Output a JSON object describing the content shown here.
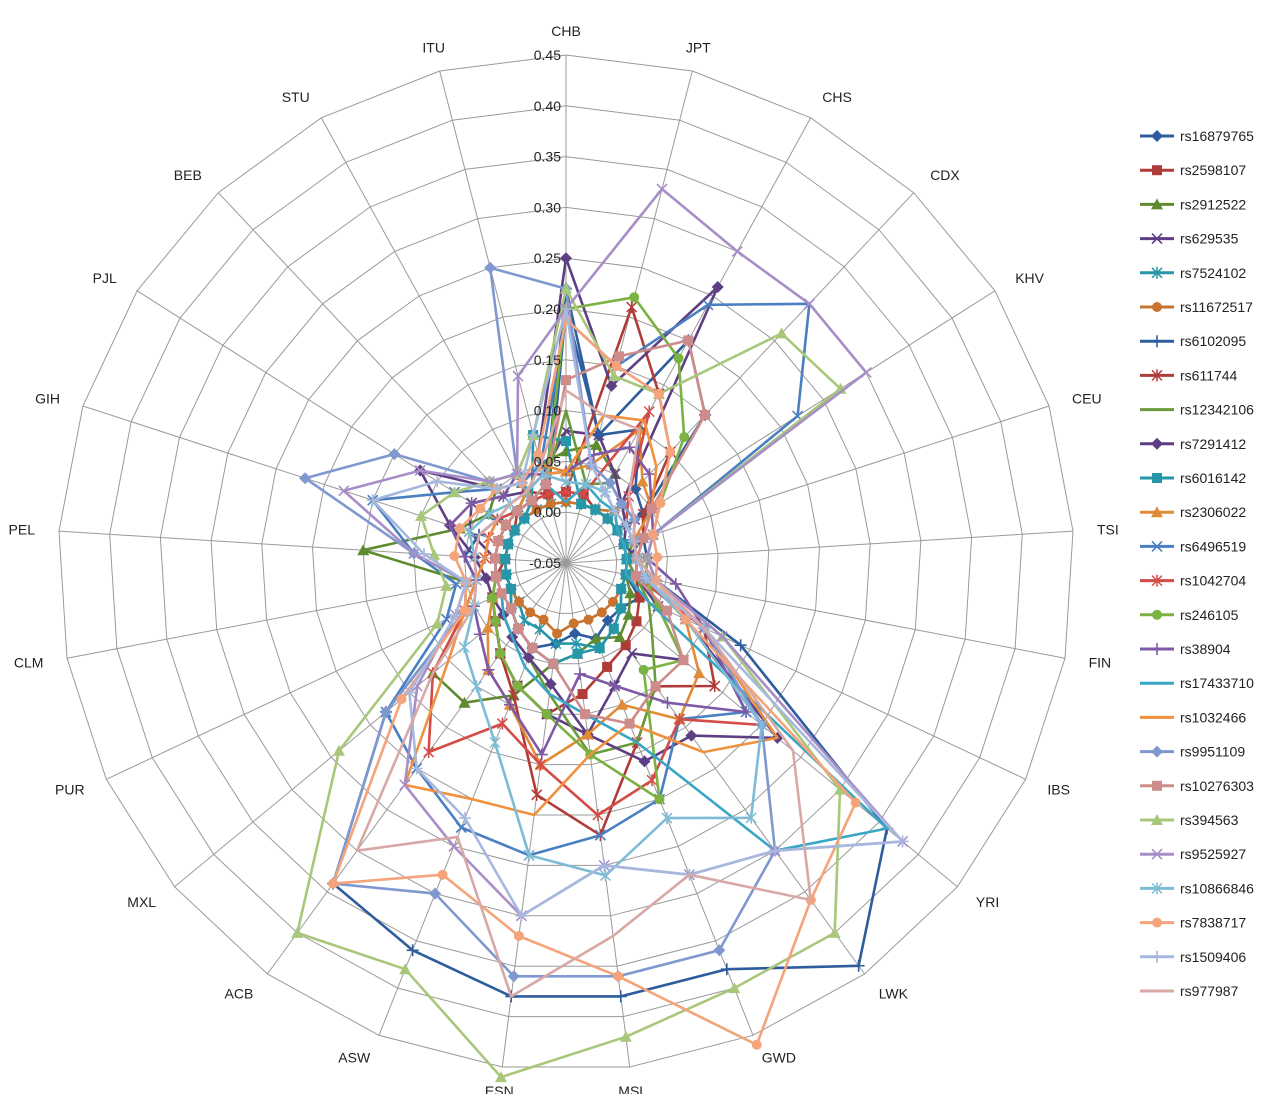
{
  "chart_data": {
    "type": "radar",
    "title": "",
    "rmin": -0.05,
    "rmax": 0.45,
    "tick_step": 0.05,
    "ticks": [
      "-0.05",
      "0.00",
      "0.05",
      "0.10",
      "0.15",
      "0.20",
      "0.25",
      "0.30",
      "0.35",
      "0.40",
      "0.45"
    ],
    "grid": true,
    "legend_position": "right",
    "categories": [
      "CHB",
      "JPT",
      "CHS",
      "CDX",
      "KHV",
      "CEU",
      "TSI",
      "FIN",
      "IBS",
      "YRI",
      "LWK",
      "GWD",
      "MSL",
      "ESN",
      "ASW",
      "ACB",
      "MXL",
      "PUR",
      "CLM",
      "PEL",
      "GIH",
      "PJL",
      "BEB",
      "STU",
      "ITU"
    ],
    "series": [
      {
        "name": "rs16879765",
        "color": "#2E5D9E",
        "marker": "diamond",
        "values": [
          0.2,
          0.08,
          0.1,
          0.05,
          0.04,
          0.03,
          0.01,
          0.01,
          0.03,
          0.02,
          0.02,
          0.03,
          0.02,
          0.03,
          0.04,
          0.03,
          0.02,
          0.01,
          0.01,
          0.01,
          0.01,
          0.01,
          0.01,
          0.02,
          0.02
        ]
      },
      {
        "name": "rs2598107",
        "color": "#B03C38",
        "marker": "square",
        "values": [
          0.02,
          0.02,
          0.01,
          0.01,
          0.01,
          0.01,
          0.01,
          0.02,
          0.03,
          0.04,
          0.05,
          0.06,
          0.08,
          0.1,
          0.08,
          0.06,
          0.04,
          0.03,
          0.02,
          0.01,
          0.01,
          0.01,
          0.02,
          0.03,
          0.02
        ]
      },
      {
        "name": "rs2912522",
        "color": "#5E8B2F",
        "marker": "triangle",
        "values": [
          0.06,
          0.07,
          0.05,
          0.03,
          0.02,
          0.01,
          0.01,
          0.01,
          0.02,
          0.03,
          0.04,
          0.03,
          0.04,
          0.05,
          0.09,
          0.12,
          0.12,
          0.06,
          0.05,
          0.15,
          0.06,
          0.04,
          0.05,
          0.04,
          0.05
        ]
      },
      {
        "name": "rs629535",
        "color": "#5E3F84",
        "marker": "x",
        "values": [
          0.08,
          0.08,
          0.05,
          0.03,
          0.03,
          0.02,
          0.02,
          0.02,
          0.05,
          0.1,
          0.06,
          0.08,
          0.12,
          0.1,
          0.08,
          0.06,
          0.04,
          0.03,
          0.02,
          0.02,
          0.05,
          0.06,
          0.04,
          0.03,
          0.04
        ]
      },
      {
        "name": "rs7524102",
        "color": "#2696A9",
        "marker": "asterisk",
        "values": [
          0.01,
          0.01,
          0.01,
          0.01,
          0.01,
          0.01,
          0.01,
          0.01,
          0.01,
          0.02,
          0.03,
          0.04,
          0.03,
          0.03,
          0.02,
          0.02,
          0.01,
          0.01,
          0.01,
          0.01,
          0.01,
          0.01,
          0.01,
          0.01,
          0.01
        ]
      },
      {
        "name": "rs11672517",
        "color": "#C8742E",
        "marker": "circle",
        "values": [
          0.01,
          0.01,
          0.01,
          0.02,
          0.01,
          0.01,
          0.01,
          0.01,
          0.01,
          0.01,
          0.01,
          0.01,
          0.01,
          0.02,
          0.01,
          0.01,
          0.01,
          0.01,
          0.01,
          0.01,
          0.01,
          0.01,
          0.01,
          0.01,
          0.01
        ]
      },
      {
        "name": "rs6102095",
        "color": "#2E5D9E",
        "marker": "plus",
        "values": [
          0.22,
          0.08,
          0.2,
          0.15,
          0.04,
          0.03,
          0.03,
          0.04,
          0.14,
          0.36,
          0.44,
          0.38,
          0.38,
          0.38,
          0.36,
          0.34,
          0.18,
          0.06,
          0.04,
          0.05,
          0.04,
          0.03,
          0.02,
          0.02,
          0.03
        ]
      },
      {
        "name": "rs611744",
        "color": "#B03C38",
        "marker": "asterisk",
        "values": [
          0.02,
          0.21,
          0.14,
          0.1,
          0.04,
          0.03,
          0.02,
          0.03,
          0.1,
          0.14,
          0.1,
          0.14,
          0.22,
          0.18,
          0.09,
          0.06,
          0.04,
          0.03,
          0.02,
          0.02,
          0.02,
          0.02,
          0.02,
          0.02,
          0.02
        ]
      },
      {
        "name": "rs12342106",
        "color": "#6A9A3C",
        "marker": "none",
        "values": [
          0.1,
          0.03,
          0.04,
          0.03,
          0.02,
          0.02,
          0.01,
          0.02,
          0.04,
          0.06,
          0.1,
          0.14,
          0.14,
          0.08,
          0.05,
          0.04,
          0.03,
          0.02,
          0.02,
          0.02,
          0.02,
          0.02,
          0.02,
          0.02,
          0.03
        ]
      },
      {
        "name": "rs7291412",
        "color": "#5E3F84",
        "marker": "diamond",
        "values": [
          0.25,
          0.13,
          0.26,
          0.03,
          0.02,
          0.01,
          0.02,
          0.03,
          0.08,
          0.22,
          0.16,
          0.16,
          0.12,
          0.07,
          0.05,
          0.04,
          0.03,
          0.03,
          0.03,
          0.04,
          0.07,
          0.12,
          0.05,
          0.04,
          0.06
        ]
      },
      {
        "name": "rs6016142",
        "color": "#2696A9",
        "marker": "square",
        "values": [
          0.07,
          0.01,
          0.01,
          0.01,
          0.01,
          0.01,
          0.01,
          0.01,
          0.01,
          0.02,
          0.03,
          0.04,
          0.04,
          0.05,
          0.04,
          0.03,
          0.02,
          0.01,
          0.01,
          0.01,
          0.01,
          0.01,
          0.01,
          0.02,
          0.08
        ]
      },
      {
        "name": "rs2306022",
        "color": "#E08B37",
        "marker": "triangle",
        "values": [
          0.04,
          0.05,
          0.1,
          0.06,
          0.05,
          0.02,
          0.02,
          0.03,
          0.08,
          0.12,
          0.14,
          0.1,
          0.12,
          0.15,
          0.1,
          0.08,
          0.05,
          0.03,
          0.02,
          0.02,
          0.02,
          0.02,
          0.02,
          0.03,
          0.05
        ]
      },
      {
        "name": "rs6496519",
        "color": "#4A7FC1",
        "marker": "x",
        "values": [
          0.19,
          0.15,
          0.24,
          0.3,
          0.22,
          0.04,
          0.03,
          0.03,
          0.1,
          0.18,
          0.14,
          0.2,
          0.22,
          0.24,
          0.23,
          0.2,
          0.18,
          0.08,
          0.06,
          0.1,
          0.15,
          0.08,
          0.05,
          0.04,
          0.05
        ]
      },
      {
        "name": "rs1042704",
        "color": "#D44C47",
        "marker": "asterisk",
        "values": [
          0.02,
          0.02,
          0.12,
          0.04,
          0.02,
          0.02,
          0.02,
          0.02,
          0.1,
          0.2,
          0.14,
          0.18,
          0.2,
          0.15,
          0.12,
          0.18,
          0.12,
          0.06,
          0.04,
          0.03,
          0.03,
          0.03,
          0.02,
          0.02,
          0.02
        ]
      },
      {
        "name": "rs246105",
        "color": "#7BB242",
        "marker": "circle",
        "values": [
          0.2,
          0.22,
          0.18,
          0.12,
          0.06,
          0.04,
          0.03,
          0.03,
          0.05,
          0.1,
          0.08,
          0.2,
          0.14,
          0.1,
          0.08,
          0.06,
          0.04,
          0.03,
          0.02,
          0.02,
          0.02,
          0.02,
          0.02,
          0.02,
          0.03
        ]
      },
      {
        "name": "rs38904",
        "color": "#7E5AA6",
        "marker": "plus",
        "values": [
          0.04,
          0.06,
          0.08,
          0.07,
          0.05,
          0.04,
          0.03,
          0.06,
          0.1,
          0.18,
          0.12,
          0.08,
          0.06,
          0.14,
          0.1,
          0.08,
          0.06,
          0.05,
          0.04,
          0.05,
          0.07,
          0.06,
          0.04,
          0.05,
          0.04
        ]
      },
      {
        "name": "rs17433710",
        "color": "#3AA6C6",
        "marker": "none",
        "values": [
          0.01,
          0.03,
          0.02,
          0.02,
          0.01,
          0.01,
          0.01,
          0.01,
          0.04,
          0.36,
          0.3,
          0.14,
          0.1,
          0.08,
          0.06,
          0.04,
          0.03,
          0.02,
          0.02,
          0.02,
          0.02,
          0.02,
          0.02,
          0.02,
          0.03
        ]
      },
      {
        "name": "rs1032466",
        "color": "#F0913F",
        "marker": "none",
        "values": [
          0.04,
          0.1,
          0.11,
          0.08,
          0.05,
          0.03,
          0.02,
          0.04,
          0.1,
          0.22,
          0.18,
          0.12,
          0.14,
          0.2,
          0.2,
          0.22,
          0.1,
          0.06,
          0.04,
          0.03,
          0.03,
          0.03,
          0.03,
          0.03,
          0.04
        ]
      },
      {
        "name": "rs9951109",
        "color": "#7F98CF",
        "marker": "diamond",
        "values": [
          0.22,
          0.05,
          0.04,
          0.03,
          0.03,
          0.02,
          0.02,
          0.03,
          0.1,
          0.2,
          0.3,
          0.36,
          0.36,
          0.36,
          0.3,
          0.34,
          0.18,
          0.06,
          0.05,
          0.1,
          0.22,
          0.15,
          0.06,
          0.05,
          0.25
        ]
      },
      {
        "name": "rs10276303",
        "color": "#CD8B8A",
        "marker": "square",
        "values": [
          0.13,
          0.16,
          0.2,
          0.15,
          0.05,
          0.03,
          0.02,
          0.02,
          0.06,
          0.1,
          0.1,
          0.12,
          0.1,
          0.05,
          0.04,
          0.03,
          0.02,
          0.02,
          0.02,
          0.02,
          0.02,
          0.02,
          0.02,
          0.02,
          0.03
        ]
      },
      {
        "name": "rs394563",
        "color": "#A9C77A",
        "marker": "triangle",
        "values": [
          0.22,
          0.14,
          0.14,
          0.26,
          0.27,
          0.04,
          0.03,
          0.04,
          0.12,
          0.3,
          0.4,
          0.4,
          0.42,
          0.46,
          0.38,
          0.4,
          0.24,
          0.09,
          0.07,
          0.08,
          0.1,
          0.08,
          0.06,
          0.05,
          0.08
        ]
      },
      {
        "name": "rs9525927",
        "color": "#A78EC7",
        "marker": "x",
        "values": [
          0.2,
          0.33,
          0.3,
          0.3,
          0.3,
          0.04,
          0.03,
          0.04,
          0.12,
          0.38,
          0.3,
          0.28,
          0.25,
          0.3,
          0.25,
          0.22,
          0.14,
          0.07,
          0.05,
          0.1,
          0.18,
          0.12,
          0.06,
          0.05,
          0.14
        ]
      },
      {
        "name": "rs10866846",
        "color": "#7EBCD6",
        "marker": "asterisk",
        "values": [
          0.03,
          0.03,
          0.03,
          0.02,
          0.02,
          0.02,
          0.02,
          0.03,
          0.08,
          0.2,
          0.26,
          0.22,
          0.26,
          0.24,
          0.14,
          0.1,
          0.08,
          0.05,
          0.04,
          0.04,
          0.05,
          0.04,
          0.03,
          0.03,
          0.04
        ]
      },
      {
        "name": "rs7838717",
        "color": "#F4A37A",
        "marker": "circle",
        "values": [
          0.19,
          0.15,
          0.14,
          0.1,
          0.06,
          0.04,
          0.04,
          0.04,
          0.08,
          0.32,
          0.36,
          0.46,
          0.36,
          0.32,
          0.28,
          0.34,
          0.16,
          0.06,
          0.05,
          0.06,
          0.06,
          0.05,
          0.05,
          0.04,
          0.06
        ]
      },
      {
        "name": "rs1509406",
        "color": "#A7B8DF",
        "marker": "plus",
        "values": [
          0.2,
          0.05,
          0.03,
          0.02,
          0.02,
          0.02,
          0.02,
          0.03,
          0.1,
          0.38,
          0.3,
          0.28,
          0.25,
          0.3,
          0.22,
          0.2,
          0.15,
          0.07,
          0.05,
          0.09,
          0.15,
          0.1,
          0.05,
          0.04,
          0.08
        ]
      },
      {
        "name": "rs977987",
        "color": "#D8A8A6",
        "marker": "none",
        "values": [
          0.12,
          0.1,
          0.1,
          0.04,
          0.03,
          0.02,
          0.02,
          0.04,
          0.1,
          0.24,
          0.36,
          0.28,
          0.32,
          0.38,
          0.24,
          0.3,
          0.12,
          0.05,
          0.04,
          0.04,
          0.04,
          0.03,
          0.03,
          0.03,
          0.05
        ]
      }
    ]
  }
}
